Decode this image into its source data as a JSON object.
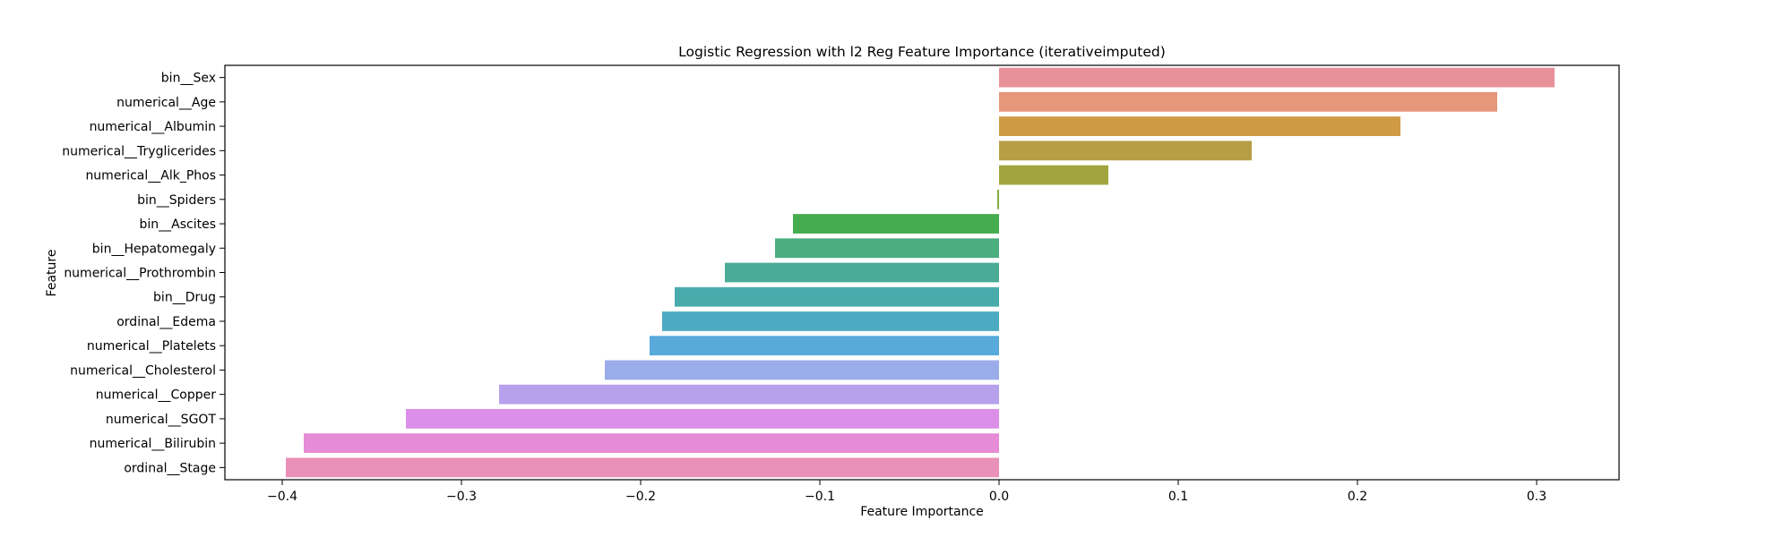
{
  "chart_data": {
    "type": "bar",
    "orientation": "horizontal",
    "title": "Logistic Regression with l2 Reg Feature Importance (iterativeimputed)",
    "xlabel": "Feature Importance",
    "ylabel": "Feature",
    "xlim": [
      -0.432,
      0.346
    ],
    "xticks": [
      -0.4,
      -0.3,
      -0.2,
      -0.1,
      0.0,
      0.1,
      0.2,
      0.3
    ],
    "xtick_labels": [
      "−0.4",
      "−0.3",
      "−0.2",
      "−0.1",
      "0.0",
      "0.1",
      "0.2",
      "0.3"
    ],
    "grid": false,
    "categories": [
      "bin__Sex",
      "numerical__Age",
      "numerical__Albumin",
      "numerical__Tryglicerides",
      "numerical__Alk_Phos",
      "bin__Spiders",
      "bin__Ascites",
      "bin__Hepatomegaly",
      "numerical__Prothrombin",
      "bin__Drug",
      "ordinal__Edema",
      "numerical__Platelets",
      "numerical__Cholesterol",
      "numerical__Copper",
      "numerical__SGOT",
      "numerical__Bilirubin",
      "ordinal__Stage"
    ],
    "values": [
      0.31,
      0.278,
      0.224,
      0.141,
      0.061,
      -0.001,
      -0.115,
      -0.125,
      -0.153,
      -0.181,
      -0.188,
      -0.195,
      -0.22,
      -0.279,
      -0.331,
      -0.388,
      -0.398
    ],
    "colors": [
      "#e8919a",
      "#e6967a",
      "#cf9a44",
      "#b79e46",
      "#a2a53f",
      "#85ad3e",
      "#45ac4f",
      "#4aae7f",
      "#4aab96",
      "#4aabad",
      "#4cabc0",
      "#58aadb",
      "#9bacea",
      "#b7a1ec",
      "#dc8fe9",
      "#e68bd5",
      "#e991b8"
    ]
  }
}
